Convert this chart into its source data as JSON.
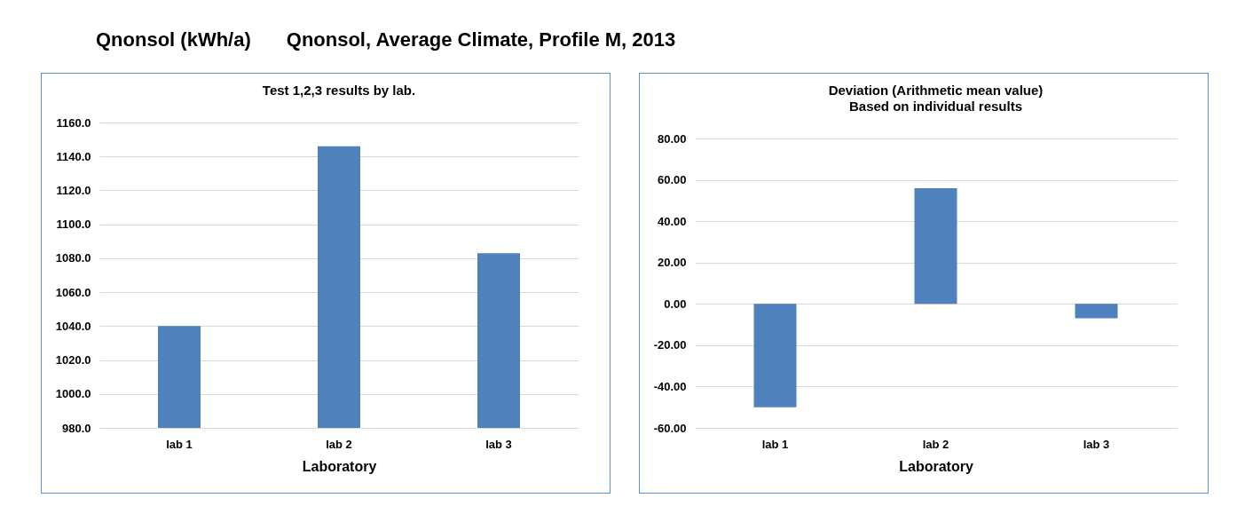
{
  "chart_data": [
    {
      "type": "bar",
      "title": "Test 1,2,3 results by lab.",
      "xlabel": "Laboratory",
      "annotations": [
        "Qnonsol (kWh/a)",
        "Qnonsol, Average Climate, Profile M, 2013"
      ],
      "categories": [
        "lab 1",
        "lab 2",
        "lab 3"
      ],
      "values": [
        1040,
        1146,
        1083
      ],
      "color": "#4f81bd",
      "ylim": [
        980,
        1160
      ],
      "yticks": [
        {
          "value": 980,
          "label": "980.0"
        },
        {
          "value": 1000,
          "label": "1000.0"
        },
        {
          "value": 1020,
          "label": "1020.0"
        },
        {
          "value": 1040,
          "label": "1040.0"
        },
        {
          "value": 1060,
          "label": "1060.0"
        },
        {
          "value": 1080,
          "label": "1080.0"
        },
        {
          "value": 1100,
          "label": "1100.0"
        },
        {
          "value": 1120,
          "label": "1120.0"
        },
        {
          "value": 1140,
          "label": "1140.0"
        },
        {
          "value": 1160,
          "label": "1160.0"
        }
      ],
      "grid": "y"
    },
    {
      "type": "bar",
      "title": "Deviation (Arithmetic mean value)",
      "subtitle": "Based on individual results",
      "xlabel": "Laboratory",
      "categories": [
        "lab 1",
        "lab 2",
        "lab 3"
      ],
      "values": [
        -50,
        56,
        -7
      ],
      "color": "#4f81bd",
      "ylim": [
        -60,
        80
      ],
      "yticks": [
        {
          "value": -60,
          "label": "-60.00"
        },
        {
          "value": -40,
          "label": "-40.00"
        },
        {
          "value": -20,
          "label": "-20.00"
        },
        {
          "value": 0,
          "label": "0.00"
        },
        {
          "value": 20,
          "label": "20.00"
        },
        {
          "value": 40,
          "label": "40.00"
        },
        {
          "value": 60,
          "label": "60.00"
        },
        {
          "value": 80,
          "label": "80.00"
        }
      ],
      "grid": "y"
    }
  ]
}
